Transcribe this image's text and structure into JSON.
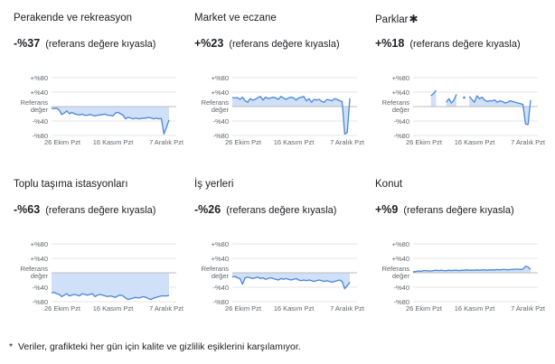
{
  "chart_data": [
    {
      "type": "line",
      "title": "Perakende ve rekreasyon",
      "change": "-%37",
      "change_suffix": "(referans değere kıyasla)",
      "ylim": [
        -80,
        80
      ],
      "yticks": [
        {
          "value": 80,
          "label": "+%80"
        },
        {
          "value": 40,
          "label": "+%40"
        },
        {
          "value": 0,
          "label": "Referans değer"
        },
        {
          "value": -40,
          "label": "-%40"
        },
        {
          "value": -80,
          "label": "-%80"
        }
      ],
      "xticks": [
        "26 Ekim Pzt",
        "16 Kasım Pzt",
        "7 Aralık Pzt"
      ],
      "values": [
        -5,
        -6,
        -4,
        -10,
        -22,
        -18,
        -12,
        -20,
        -16,
        -20,
        -22,
        -23,
        -21,
        -24,
        -24,
        -22,
        -24,
        -26,
        -24,
        -23,
        -22,
        -21,
        -24,
        -24,
        -26,
        -18,
        -16,
        -20,
        -24,
        -34,
        -30,
        -32,
        -34,
        -32,
        -34,
        -33,
        -32,
        -32,
        -30,
        -32,
        -34,
        -32,
        -34,
        -33,
        -76,
        -58,
        -37
      ],
      "gaps": []
    },
    {
      "type": "line",
      "title": "Market ve eczane",
      "change": "+%23",
      "change_suffix": "(referans değere kıyasla)",
      "ylim": [
        -80,
        80
      ],
      "yticks": [
        {
          "value": 80,
          "label": "+%80"
        },
        {
          "value": 40,
          "label": "+%40"
        },
        {
          "value": 0,
          "label": "Referans değer"
        },
        {
          "value": -40,
          "label": "-%40"
        },
        {
          "value": -80,
          "label": "-%80"
        }
      ],
      "xticks": [
        "26 Ekim Pzt",
        "16 Kasım Pzt",
        "7 Aralık Pzt"
      ],
      "values": [
        25,
        24,
        25,
        20,
        26,
        16,
        12,
        22,
        18,
        20,
        25,
        28,
        18,
        26,
        22,
        24,
        26,
        24,
        20,
        28,
        24,
        20,
        24,
        26,
        24,
        18,
        24,
        26,
        28,
        16,
        22,
        12,
        20,
        18,
        20,
        14,
        12,
        20,
        18,
        16,
        22,
        20,
        16,
        14,
        -76,
        -72,
        23
      ],
      "gaps": []
    },
    {
      "type": "line",
      "title": "Parklar",
      "title_marker": "✱",
      "change": "+%18",
      "change_suffix": "(referans değere kıyasla)",
      "ylim": [
        -80,
        80
      ],
      "yticks": [
        {
          "value": 80,
          "label": "+%80"
        },
        {
          "value": 40,
          "label": "+%40"
        },
        {
          "value": 0,
          "label": "Referans değer"
        },
        {
          "value": -40,
          "label": "-%40"
        },
        {
          "value": -80,
          "label": "-%80"
        }
      ],
      "xticks": [
        "26 Ekim Pzt",
        "16 Kasım Pzt",
        "7 Aralık Pzt"
      ],
      "values": [
        null,
        null,
        null,
        null,
        null,
        null,
        null,
        30,
        36,
        45,
        null,
        null,
        null,
        12,
        22,
        10,
        18,
        34,
        null,
        null,
        25,
        null,
        28,
        20,
        12,
        30,
        22,
        26,
        18,
        14,
        16,
        16,
        18,
        12,
        16,
        14,
        10,
        12,
        16,
        14,
        12,
        10,
        8,
        6,
        -48,
        -50,
        18
      ],
      "gaps": [
        [
          0,
          6
        ],
        [
          10,
          12
        ],
        [
          19,
          19
        ],
        [
          21,
          21
        ]
      ]
    },
    {
      "type": "line",
      "title": "Toplu taşıma istasyonları",
      "change": "-%63",
      "change_suffix": "(referans değere kıyasla)",
      "ylim": [
        -80,
        80
      ],
      "yticks": [
        {
          "value": 80,
          "label": "+%80"
        },
        {
          "value": 40,
          "label": "+%40"
        },
        {
          "value": 0,
          "label": "Referans değer"
        },
        {
          "value": -40,
          "label": "-%40"
        },
        {
          "value": -80,
          "label": "-%80"
        }
      ],
      "xticks": [
        "26 Ekim Pzt",
        "16 Kasım Pzt",
        "7 Aralık Pzt"
      ],
      "values": [
        -56,
        -54,
        -58,
        -60,
        -66,
        -62,
        -58,
        -64,
        -62,
        -60,
        -62,
        -64,
        -58,
        -60,
        -62,
        -60,
        -58,
        -66,
        -62,
        -60,
        -62,
        -64,
        -66,
        -64,
        -66,
        -68,
        -64,
        -62,
        -64,
        -70,
        -74,
        -72,
        -70,
        -68,
        -70,
        -68,
        -66,
        -68,
        -72,
        -74,
        -70,
        -68,
        -66,
        -64,
        -64,
        -64,
        -63
      ],
      "gaps": []
    },
    {
      "type": "line",
      "title": "İş yerleri",
      "change": "-%26",
      "change_suffix": "(referans değere kıyasla)",
      "ylim": [
        -80,
        80
      ],
      "yticks": [
        {
          "value": 80,
          "label": "+%80"
        },
        {
          "value": 40,
          "label": "+%40"
        },
        {
          "value": 0,
          "label": "Referans değer"
        },
        {
          "value": -40,
          "label": "-%40"
        },
        {
          "value": -80,
          "label": "-%80"
        }
      ],
      "xticks": [
        "26 Ekim Pzt",
        "16 Kasım Pzt",
        "7 Aralık Pzt"
      ],
      "values": [
        -12,
        -10,
        -14,
        -16,
        -32,
        -14,
        -12,
        -14,
        -16,
        -14,
        -12,
        -16,
        -14,
        -18,
        -16,
        -14,
        -16,
        -18,
        -20,
        -16,
        -18,
        -16,
        -18,
        -20,
        -18,
        -16,
        -20,
        -22,
        -20,
        -22,
        -20,
        -22,
        -24,
        -22,
        -20,
        -22,
        -24,
        -22,
        -24,
        -26,
        -24,
        -22,
        -20,
        -24,
        -44,
        -36,
        -26
      ],
      "gaps": []
    },
    {
      "type": "line",
      "title": "Konut",
      "change": "+%9",
      "change_suffix": "(referans değere kıyasla)",
      "ylim": [
        -80,
        80
      ],
      "yticks": [
        {
          "value": 80,
          "label": "+%80"
        },
        {
          "value": 40,
          "label": "+%40"
        },
        {
          "value": 0,
          "label": "Referans değer"
        },
        {
          "value": -40,
          "label": "-%40"
        },
        {
          "value": -80,
          "label": "-%80"
        }
      ],
      "xticks": [
        "26 Ekim Pzt",
        "16 Kasım Pzt",
        "7 Aralık Pzt"
      ],
      "values": [
        3,
        3,
        5,
        4,
        6,
        6,
        5,
        5,
        6,
        7,
        6,
        7,
        6,
        6,
        7,
        6,
        7,
        7,
        6,
        7,
        7,
        8,
        7,
        7,
        7,
        8,
        7,
        8,
        8,
        7,
        8,
        8,
        8,
        9,
        8,
        9,
        9,
        8,
        9,
        9,
        10,
        10,
        9,
        10,
        18,
        16,
        9
      ],
      "gaps": []
    }
  ],
  "footnote": {
    "marker": "*",
    "text": "Veriler, grafikteki her gün için kalite ve gizlilik eşiklerini karşılamıyor."
  },
  "colors": {
    "line": "#4a86d8",
    "fill": "#cfe0f8",
    "grid": "#e6e6e6",
    "axis": "#bdbdbd",
    "text": "#5f6368"
  }
}
